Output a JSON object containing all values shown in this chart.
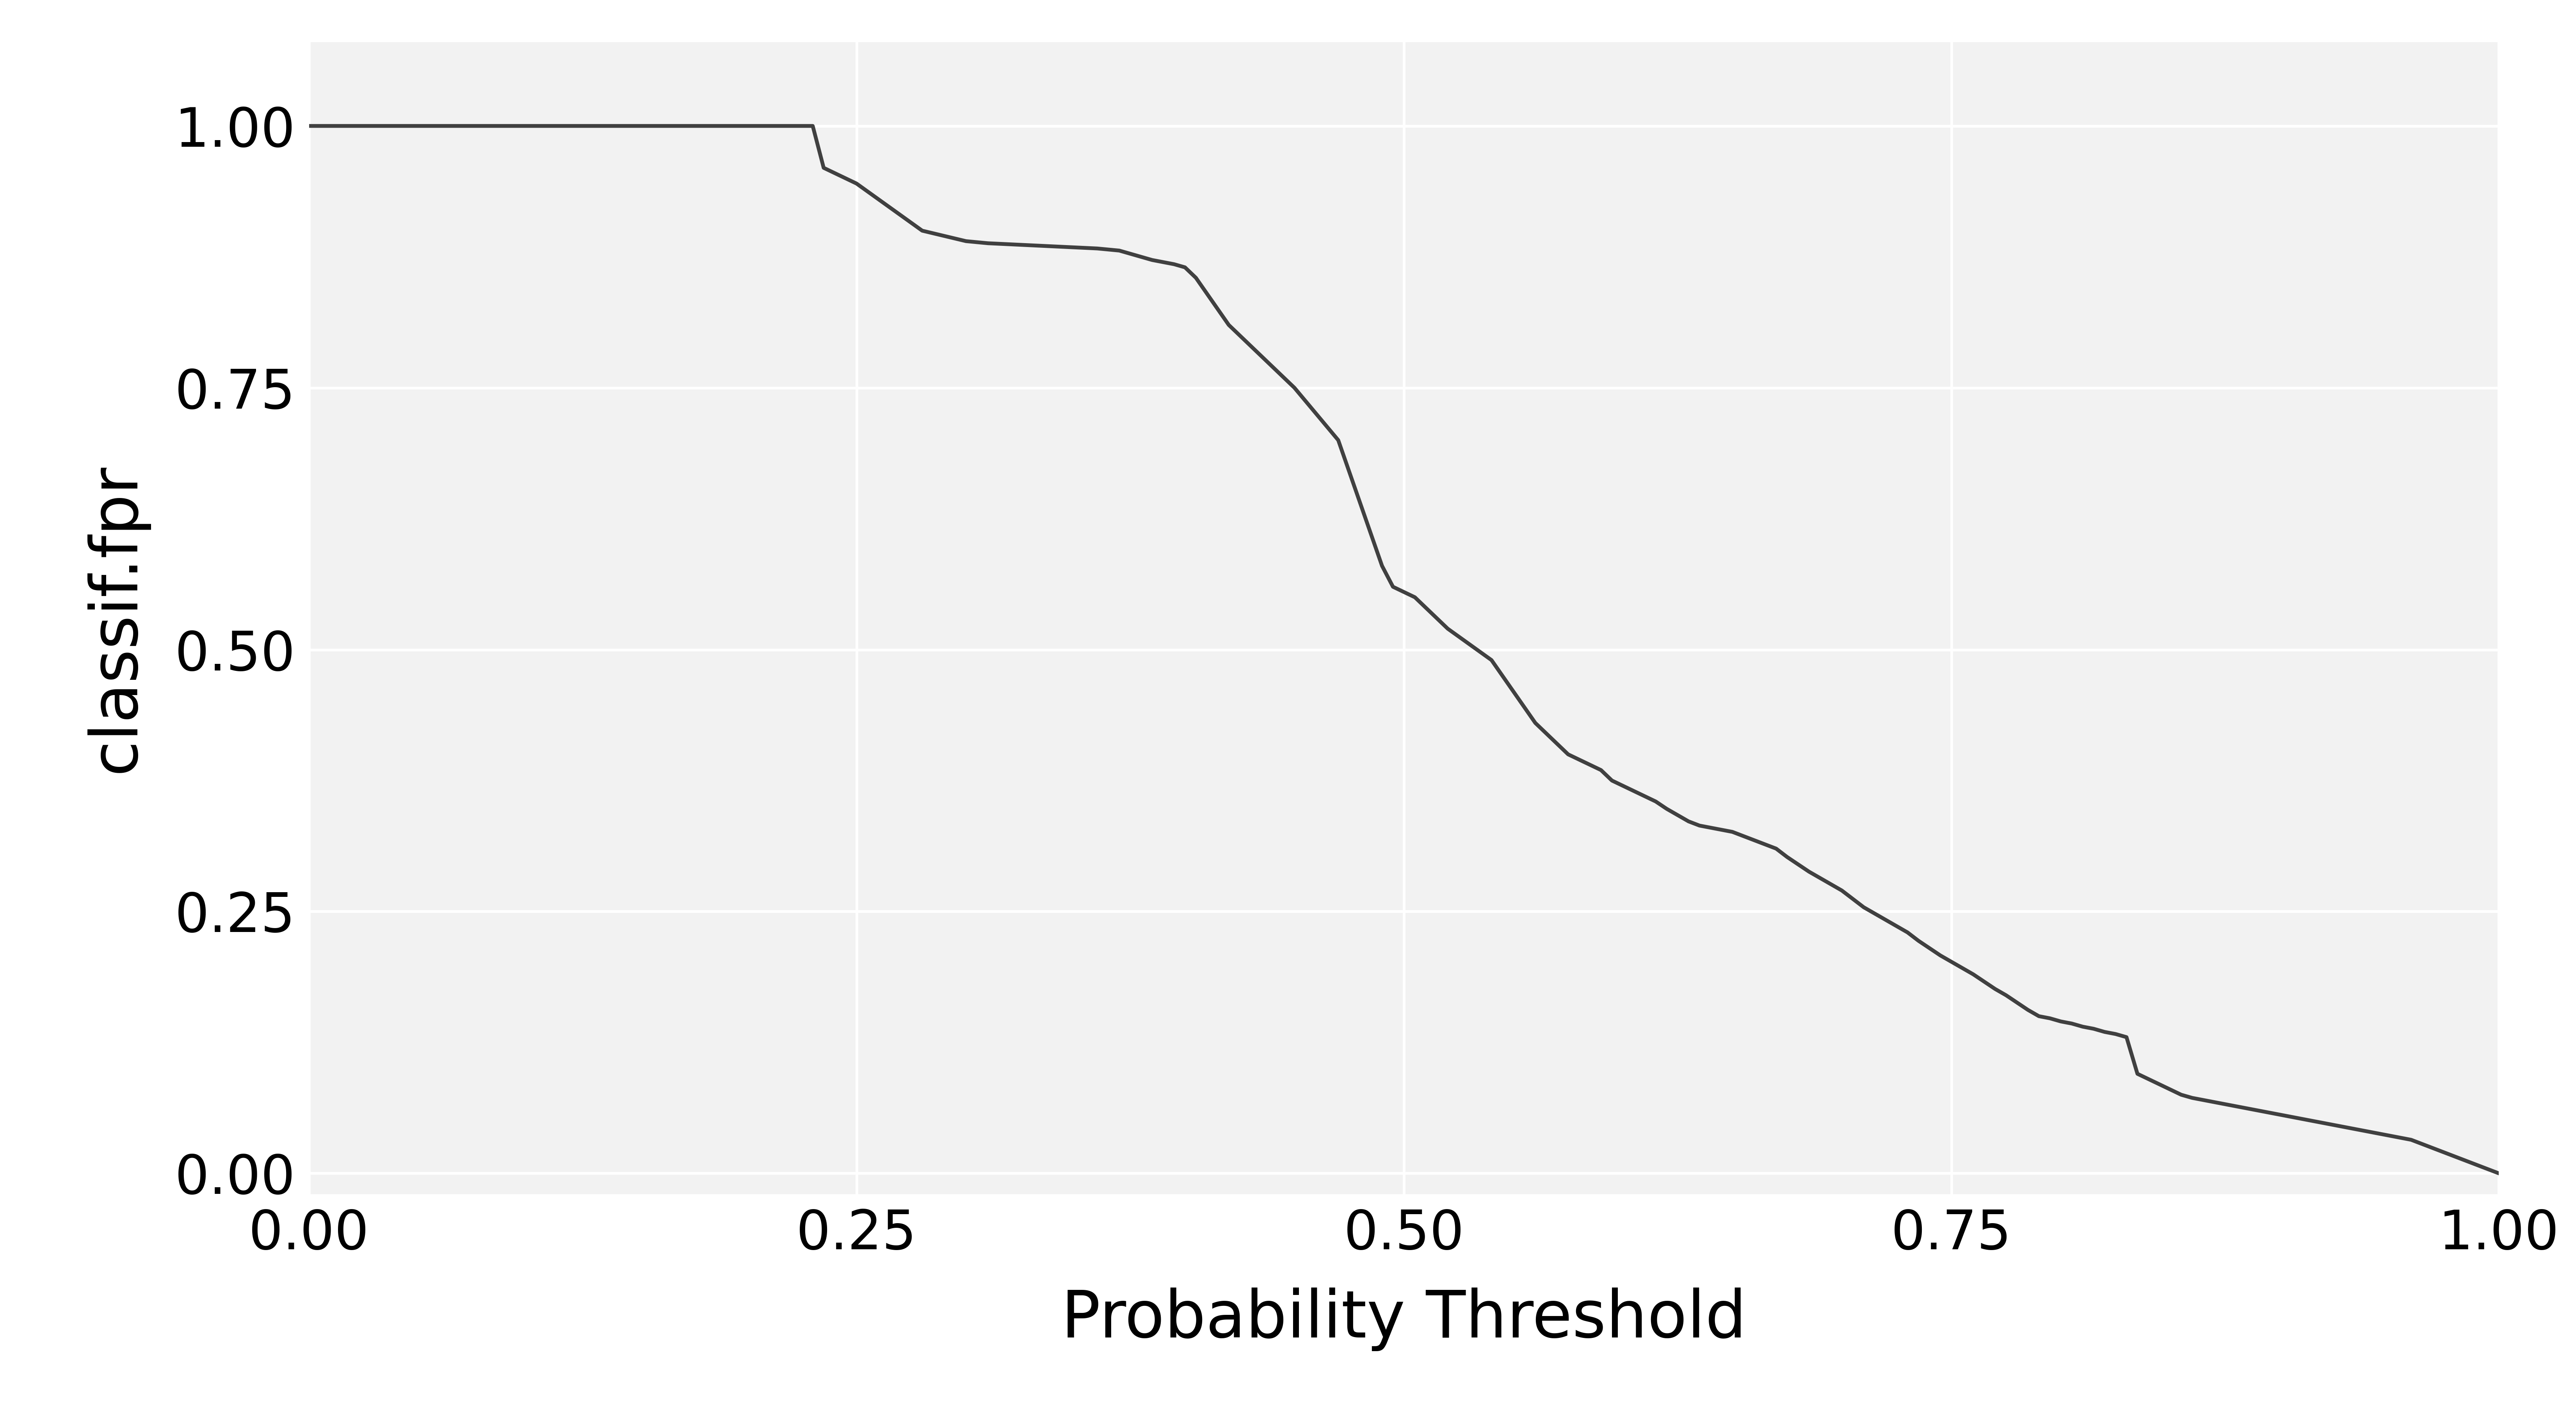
{
  "title": "",
  "xlabel": "Probability Threshold",
  "ylabel": "classif.fpr",
  "xlim": [
    0.0,
    1.0
  ],
  "ylim": [
    -0.02,
    1.08
  ],
  "x_ticks": [
    0.0,
    0.25,
    0.5,
    0.75,
    1.0
  ],
  "y_ticks": [
    0.0,
    0.25,
    0.5,
    0.75,
    1.0
  ],
  "line_color": "#404040",
  "line_width": 7.0,
  "background_color": "#ffffff",
  "panel_background": "#f2f2f2",
  "grid_color": "#ffffff",
  "grid_linewidth": 5.0,
  "xlabel_fontsize": 120,
  "ylabel_fontsize": 120,
  "tick_fontsize": 100,
  "xy_data": [
    [
      0.0,
      1.0
    ],
    [
      0.01,
      1.0
    ],
    [
      0.02,
      1.0
    ],
    [
      0.03,
      1.0
    ],
    [
      0.04,
      1.0
    ],
    [
      0.05,
      1.0
    ],
    [
      0.06,
      1.0
    ],
    [
      0.07,
      1.0
    ],
    [
      0.08,
      1.0
    ],
    [
      0.09,
      1.0
    ],
    [
      0.1,
      1.0
    ],
    [
      0.11,
      1.0
    ],
    [
      0.12,
      1.0
    ],
    [
      0.13,
      1.0
    ],
    [
      0.14,
      1.0
    ],
    [
      0.15,
      1.0
    ],
    [
      0.16,
      1.0
    ],
    [
      0.17,
      1.0
    ],
    [
      0.18,
      1.0
    ],
    [
      0.19,
      1.0
    ],
    [
      0.2,
      1.0
    ],
    [
      0.21,
      1.0
    ],
    [
      0.22,
      1.0
    ],
    [
      0.23,
      1.0
    ],
    [
      0.235,
      0.96
    ],
    [
      0.24,
      0.955
    ],
    [
      0.245,
      0.95
    ],
    [
      0.25,
      0.945
    ],
    [
      0.26,
      0.93
    ],
    [
      0.27,
      0.915
    ],
    [
      0.28,
      0.9
    ],
    [
      0.29,
      0.895
    ],
    [
      0.3,
      0.89
    ],
    [
      0.31,
      0.888
    ],
    [
      0.32,
      0.887
    ],
    [
      0.33,
      0.886
    ],
    [
      0.34,
      0.885
    ],
    [
      0.35,
      0.884
    ],
    [
      0.36,
      0.883
    ],
    [
      0.365,
      0.882
    ],
    [
      0.37,
      0.881
    ],
    [
      0.375,
      0.878
    ],
    [
      0.38,
      0.875
    ],
    [
      0.385,
      0.872
    ],
    [
      0.39,
      0.87
    ],
    [
      0.395,
      0.868
    ],
    [
      0.4,
      0.865
    ],
    [
      0.405,
      0.855
    ],
    [
      0.41,
      0.84
    ],
    [
      0.415,
      0.825
    ],
    [
      0.42,
      0.81
    ],
    [
      0.43,
      0.79
    ],
    [
      0.44,
      0.77
    ],
    [
      0.45,
      0.75
    ],
    [
      0.46,
      0.725
    ],
    [
      0.47,
      0.7
    ],
    [
      0.475,
      0.67
    ],
    [
      0.48,
      0.64
    ],
    [
      0.485,
      0.61
    ],
    [
      0.49,
      0.58
    ],
    [
      0.495,
      0.56
    ],
    [
      0.5,
      0.555
    ],
    [
      0.505,
      0.55
    ],
    [
      0.51,
      0.54
    ],
    [
      0.52,
      0.52
    ],
    [
      0.53,
      0.505
    ],
    [
      0.54,
      0.49
    ],
    [
      0.55,
      0.46
    ],
    [
      0.56,
      0.43
    ],
    [
      0.57,
      0.41
    ],
    [
      0.575,
      0.4
    ],
    [
      0.58,
      0.395
    ],
    [
      0.585,
      0.39
    ],
    [
      0.59,
      0.385
    ],
    [
      0.595,
      0.375
    ],
    [
      0.6,
      0.37
    ],
    [
      0.605,
      0.365
    ],
    [
      0.61,
      0.36
    ],
    [
      0.615,
      0.355
    ],
    [
      0.62,
      0.348
    ],
    [
      0.625,
      0.342
    ],
    [
      0.63,
      0.336
    ],
    [
      0.635,
      0.332
    ],
    [
      0.64,
      0.33
    ],
    [
      0.645,
      0.328
    ],
    [
      0.65,
      0.326
    ],
    [
      0.655,
      0.322
    ],
    [
      0.66,
      0.318
    ],
    [
      0.665,
      0.314
    ],
    [
      0.67,
      0.31
    ],
    [
      0.675,
      0.302
    ],
    [
      0.68,
      0.295
    ],
    [
      0.685,
      0.288
    ],
    [
      0.69,
      0.282
    ],
    [
      0.695,
      0.276
    ],
    [
      0.7,
      0.27
    ],
    [
      0.705,
      0.262
    ],
    [
      0.71,
      0.254
    ],
    [
      0.715,
      0.248
    ],
    [
      0.72,
      0.242
    ],
    [
      0.725,
      0.236
    ],
    [
      0.73,
      0.23
    ],
    [
      0.735,
      0.222
    ],
    [
      0.74,
      0.215
    ],
    [
      0.745,
      0.208
    ],
    [
      0.75,
      0.202
    ],
    [
      0.755,
      0.196
    ],
    [
      0.76,
      0.19
    ],
    [
      0.765,
      0.183
    ],
    [
      0.77,
      0.176
    ],
    [
      0.775,
      0.17
    ],
    [
      0.78,
      0.163
    ],
    [
      0.785,
      0.156
    ],
    [
      0.79,
      0.15
    ],
    [
      0.795,
      0.148
    ],
    [
      0.8,
      0.145
    ],
    [
      0.805,
      0.143
    ],
    [
      0.81,
      0.14
    ],
    [
      0.815,
      0.138
    ],
    [
      0.82,
      0.135
    ],
    [
      0.825,
      0.133
    ],
    [
      0.83,
      0.13
    ],
    [
      0.835,
      0.095
    ],
    [
      0.84,
      0.09
    ],
    [
      0.845,
      0.085
    ],
    [
      0.85,
      0.08
    ],
    [
      0.855,
      0.075
    ],
    [
      0.86,
      0.072
    ],
    [
      0.865,
      0.07
    ],
    [
      0.87,
      0.068
    ],
    [
      0.875,
      0.066
    ],
    [
      0.88,
      0.064
    ],
    [
      0.885,
      0.062
    ],
    [
      0.89,
      0.06
    ],
    [
      0.895,
      0.058
    ],
    [
      0.9,
      0.056
    ],
    [
      0.905,
      0.054
    ],
    [
      0.91,
      0.052
    ],
    [
      0.915,
      0.05
    ],
    [
      0.92,
      0.048
    ],
    [
      0.925,
      0.046
    ],
    [
      0.93,
      0.044
    ],
    [
      0.935,
      0.042
    ],
    [
      0.94,
      0.04
    ],
    [
      0.945,
      0.038
    ],
    [
      0.95,
      0.036
    ],
    [
      0.955,
      0.034
    ],
    [
      0.96,
      0.032
    ],
    [
      0.965,
      0.028
    ],
    [
      0.97,
      0.024
    ],
    [
      0.975,
      0.02
    ],
    [
      0.98,
      0.016
    ],
    [
      0.985,
      0.012
    ],
    [
      0.99,
      0.008
    ],
    [
      0.995,
      0.004
    ],
    [
      1.0,
      0.0
    ]
  ]
}
